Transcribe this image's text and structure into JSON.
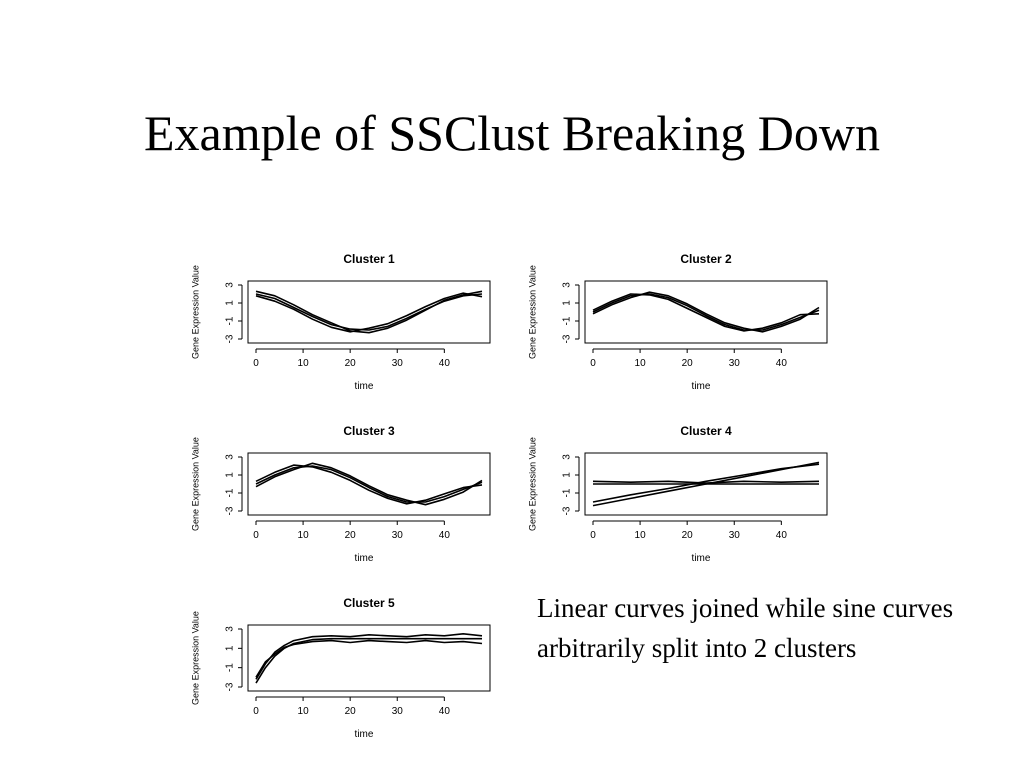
{
  "slide": {
    "title": "Example of SSClust Breaking Down",
    "note": "Linear curves joined while sine curves arbitrarily split into 2 clusters"
  },
  "chart_data": [
    {
      "type": "line",
      "title": "Cluster 1",
      "xlabel": "time",
      "ylabel": "Gene Expression Value",
      "xlim": [
        0,
        48
      ],
      "ylim": [
        -3,
        3
      ],
      "xticks": [
        "0",
        "10",
        "20",
        "30",
        "40"
      ],
      "yticks": [
        "-3",
        "-1",
        "1",
        "3"
      ],
      "series": [
        {
          "x": [
            0,
            4,
            8,
            12,
            16,
            20,
            24,
            28,
            32,
            36,
            40,
            44,
            48
          ],
          "values": [
            2.0,
            1.5,
            0.5,
            -0.5,
            -1.4,
            -1.9,
            -2.0,
            -1.6,
            -0.7,
            0.3,
            1.2,
            1.8,
            2.0
          ]
        },
        {
          "x": [
            0,
            4,
            8,
            12,
            16,
            20,
            24,
            28,
            32,
            36,
            40,
            44,
            48
          ],
          "values": [
            2.3,
            1.8,
            0.8,
            -0.3,
            -1.2,
            -2.1,
            -2.3,
            -1.8,
            -0.9,
            0.2,
            1.3,
            1.9,
            2.3
          ]
        },
        {
          "x": [
            0,
            4,
            8,
            12,
            16,
            20,
            24,
            28,
            32,
            36,
            40,
            44,
            48
          ],
          "values": [
            1.8,
            1.2,
            0.3,
            -0.8,
            -1.7,
            -2.2,
            -1.8,
            -1.3,
            -0.4,
            0.6,
            1.5,
            2.1,
            1.7
          ]
        }
      ]
    },
    {
      "type": "line",
      "title": "Cluster 2",
      "xlabel": "time",
      "ylabel": "Gene Expression Value",
      "xlim": [
        0,
        48
      ],
      "ylim": [
        -3,
        3
      ],
      "xticks": [
        "0",
        "10",
        "20",
        "30",
        "40"
      ],
      "yticks": [
        "-3",
        "-1",
        "1",
        "3"
      ],
      "series": [
        {
          "x": [
            0,
            4,
            8,
            12,
            16,
            20,
            24,
            28,
            32,
            36,
            40,
            44,
            48
          ],
          "values": [
            0.0,
            1.0,
            1.8,
            2.0,
            1.6,
            0.7,
            -0.4,
            -1.4,
            -2.0,
            -2.0,
            -1.4,
            -0.6,
            0.2
          ]
        },
        {
          "x": [
            0,
            4,
            8,
            12,
            16,
            20,
            24,
            28,
            32,
            36,
            40,
            44,
            48
          ],
          "values": [
            -0.2,
            0.8,
            1.6,
            2.2,
            1.8,
            0.9,
            -0.2,
            -1.2,
            -1.8,
            -2.2,
            -1.6,
            -0.8,
            0.5
          ]
        },
        {
          "x": [
            0,
            4,
            8,
            12,
            16,
            20,
            24,
            28,
            32,
            36,
            40,
            44,
            48
          ],
          "values": [
            0.2,
            1.2,
            2.0,
            1.9,
            1.4,
            0.4,
            -0.6,
            -1.6,
            -2.1,
            -1.8,
            -1.2,
            -0.3,
            -0.2
          ]
        }
      ]
    },
    {
      "type": "line",
      "title": "Cluster 3",
      "xlabel": "time",
      "ylabel": "Gene Expression Value",
      "xlim": [
        0,
        48
      ],
      "ylim": [
        -3,
        3
      ],
      "xticks": [
        "0",
        "10",
        "20",
        "30",
        "40"
      ],
      "yticks": [
        "-3",
        "-1",
        "1",
        "3"
      ],
      "series": [
        {
          "x": [
            0,
            4,
            8,
            12,
            16,
            20,
            24,
            28,
            32,
            36,
            40,
            44,
            48
          ],
          "values": [
            0.0,
            1.0,
            1.8,
            2.0,
            1.6,
            0.7,
            -0.4,
            -1.4,
            -2.0,
            -2.0,
            -1.4,
            -0.6,
            0.2
          ]
        },
        {
          "x": [
            0,
            4,
            8,
            12,
            16,
            20,
            24,
            28,
            32,
            36,
            40,
            44,
            48
          ],
          "values": [
            -0.3,
            0.8,
            1.6,
            2.3,
            1.8,
            0.9,
            -0.2,
            -1.2,
            -1.8,
            -2.3,
            -1.7,
            -0.9,
            0.4
          ]
        },
        {
          "x": [
            0,
            4,
            8,
            12,
            16,
            20,
            24,
            28,
            32,
            36,
            40,
            44,
            48
          ],
          "values": [
            0.3,
            1.3,
            2.1,
            1.9,
            1.3,
            0.4,
            -0.7,
            -1.6,
            -2.2,
            -1.8,
            -1.1,
            -0.4,
            -0.1
          ]
        }
      ]
    },
    {
      "type": "line",
      "title": "Cluster 4",
      "xlabel": "time",
      "ylabel": "Gene Expression Value",
      "xlim": [
        0,
        48
      ],
      "ylim": [
        -3,
        3
      ],
      "xticks": [
        "0",
        "10",
        "20",
        "30",
        "40"
      ],
      "yticks": [
        "-3",
        "-1",
        "1",
        "3"
      ],
      "series": [
        {
          "x": [
            0,
            8,
            16,
            24,
            32,
            40,
            48
          ],
          "values": [
            -2.4,
            -1.6,
            -0.8,
            0.0,
            0.8,
            1.6,
            2.4
          ]
        },
        {
          "x": [
            0,
            8,
            16,
            24,
            32,
            40,
            48
          ],
          "values": [
            -2.0,
            -1.2,
            -0.5,
            0.3,
            1.0,
            1.7,
            2.2
          ]
        },
        {
          "x": [
            0,
            8,
            16,
            24,
            32,
            40,
            48
          ],
          "values": [
            0.0,
            0.0,
            0.0,
            0.0,
            0.0,
            0.0,
            0.0
          ]
        },
        {
          "x": [
            0,
            8,
            16,
            24,
            32,
            40,
            48
          ],
          "values": [
            0.3,
            0.2,
            0.3,
            0.1,
            0.3,
            0.2,
            0.3
          ]
        }
      ]
    },
    {
      "type": "line",
      "title": "Cluster 5",
      "xlabel": "time",
      "ylabel": "Gene Expression Value",
      "xlim": [
        0,
        48
      ],
      "ylim": [
        -3,
        3
      ],
      "xticks": [
        "0",
        "10",
        "20",
        "30",
        "40"
      ],
      "yticks": [
        "-3",
        "-1",
        "1",
        "3"
      ],
      "series": [
        {
          "x": [
            0,
            2,
            4,
            6,
            8,
            12,
            16,
            20,
            24,
            28,
            32,
            36,
            40,
            44,
            48
          ],
          "values": [
            -2.6,
            -1.0,
            0.2,
            1.0,
            1.5,
            1.9,
            2.0,
            2.0,
            2.0,
            2.0,
            2.0,
            2.0,
            2.0,
            2.0,
            2.0
          ]
        },
        {
          "x": [
            0,
            2,
            4,
            6,
            8,
            12,
            16,
            20,
            24,
            28,
            32,
            36,
            40,
            44,
            48
          ],
          "values": [
            -2.2,
            -0.6,
            0.6,
            1.3,
            1.8,
            2.2,
            2.3,
            2.2,
            2.4,
            2.3,
            2.2,
            2.4,
            2.3,
            2.5,
            2.3
          ]
        },
        {
          "x": [
            0,
            2,
            4,
            6,
            8,
            12,
            16,
            20,
            24,
            28,
            32,
            36,
            40,
            44,
            48
          ],
          "values": [
            -2.0,
            -0.4,
            0.4,
            1.1,
            1.4,
            1.7,
            1.8,
            1.6,
            1.8,
            1.7,
            1.6,
            1.8,
            1.6,
            1.7,
            1.5
          ]
        }
      ]
    }
  ]
}
